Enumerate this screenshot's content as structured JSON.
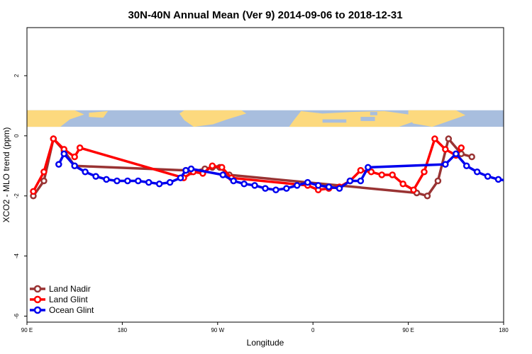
{
  "chart_data": {
    "type": "line",
    "title": "30N-40N Annual Mean (Ver 9)   2014-09-06 to 2018-12-31",
    "xlabel": "Longitude",
    "ylabel": "XCO2 - MLO trend (ppm)",
    "xlim": [
      90,
      540
    ],
    "ylim": [
      -6.2,
      3.6
    ],
    "x_ticks": [
      {
        "value": 90,
        "label": "90 E"
      },
      {
        "value": 180,
        "label": "180"
      },
      {
        "value": 270,
        "label": "90 W"
      },
      {
        "value": 360,
        "label": "0"
      },
      {
        "value": 450,
        "label": "90 E"
      },
      {
        "value": 540,
        "label": "180"
      }
    ],
    "y_ticks": [
      {
        "value": 2,
        "label": "2"
      },
      {
        "value": 0,
        "label": "0"
      },
      {
        "value": -2,
        "label": "-2"
      },
      {
        "value": -4,
        "label": "-4"
      },
      {
        "value": -6,
        "label": "-6"
      }
    ],
    "map_band": {
      "y_top": 0.85,
      "y_bottom": 0.3,
      "colors": {
        "ocean": "#a8bede",
        "land": "#fcd97e"
      }
    },
    "legend_position": "bottom-left",
    "series": [
      {
        "name": "Land Nadir",
        "color": "#993333",
        "points": [
          [
            96,
            -2.0
          ],
          [
            106,
            -1.5
          ],
          [
            115,
            -0.1
          ],
          [
            125,
            -0.5
          ],
          [
            135,
            -1.0
          ],
          [
            240,
            -1.15
          ],
          [
            245,
            -1.2
          ],
          [
            258,
            -1.1
          ],
          [
            265,
            -1.05
          ],
          [
            272,
            -1.05
          ],
          [
            281,
            -1.3
          ],
          [
            458,
            -1.9
          ],
          [
            468,
            -2.0
          ],
          [
            478,
            -1.5
          ],
          [
            488,
            -0.1
          ],
          [
            500,
            -0.6
          ],
          [
            510,
            -0.7
          ]
        ]
      },
      {
        "name": "Land Glint",
        "color": "#ff0000",
        "points": [
          [
            96,
            -1.85
          ],
          [
            106,
            -1.2
          ],
          [
            115,
            -0.1
          ],
          [
            125,
            -0.45
          ],
          [
            135,
            -0.7
          ],
          [
            140,
            -0.4
          ],
          [
            238,
            -1.4
          ],
          [
            247,
            -1.2
          ],
          [
            256,
            -1.25
          ],
          [
            265,
            -1.0
          ],
          [
            274,
            -1.05
          ],
          [
            283,
            -1.4
          ],
          [
            355,
            -1.65
          ],
          [
            365,
            -1.8
          ],
          [
            375,
            -1.75
          ],
          [
            385,
            -1.7
          ],
          [
            395,
            -1.5
          ],
          [
            405,
            -1.15
          ],
          [
            415,
            -1.2
          ],
          [
            425,
            -1.3
          ],
          [
            435,
            -1.3
          ],
          [
            445,
            -1.6
          ],
          [
            455,
            -1.8
          ],
          [
            465,
            -1.2
          ],
          [
            475,
            -0.1
          ],
          [
            485,
            -0.45
          ],
          [
            495,
            -0.65
          ],
          [
            500,
            -0.4
          ]
        ]
      },
      {
        "name": "Ocean Glint",
        "color": "#0000ee",
        "points": [
          [
            120,
            -0.95
          ],
          [
            125,
            -0.6
          ],
          [
            135,
            -1.0
          ],
          [
            145,
            -1.2
          ],
          [
            155,
            -1.35
          ],
          [
            165,
            -1.45
          ],
          [
            175,
            -1.5
          ],
          [
            185,
            -1.5
          ],
          [
            195,
            -1.5
          ],
          [
            205,
            -1.55
          ],
          [
            215,
            -1.6
          ],
          [
            225,
            -1.55
          ],
          [
            235,
            -1.4
          ],
          [
            240,
            -1.15
          ],
          [
            245,
            -1.1
          ],
          [
            275,
            -1.3
          ],
          [
            285,
            -1.5
          ],
          [
            295,
            -1.6
          ],
          [
            305,
            -1.65
          ],
          [
            315,
            -1.75
          ],
          [
            325,
            -1.8
          ],
          [
            335,
            -1.75
          ],
          [
            345,
            -1.65
          ],
          [
            355,
            -1.55
          ],
          [
            365,
            -1.65
          ],
          [
            375,
            -1.7
          ],
          [
            385,
            -1.75
          ],
          [
            395,
            -1.5
          ],
          [
            405,
            -1.5
          ],
          [
            412,
            -1.05
          ],
          [
            485,
            -0.95
          ],
          [
            495,
            -0.6
          ],
          [
            505,
            -1.0
          ],
          [
            515,
            -1.2
          ],
          [
            525,
            -1.35
          ],
          [
            535,
            -1.45
          ],
          [
            545,
            -1.5
          ]
        ]
      }
    ]
  }
}
